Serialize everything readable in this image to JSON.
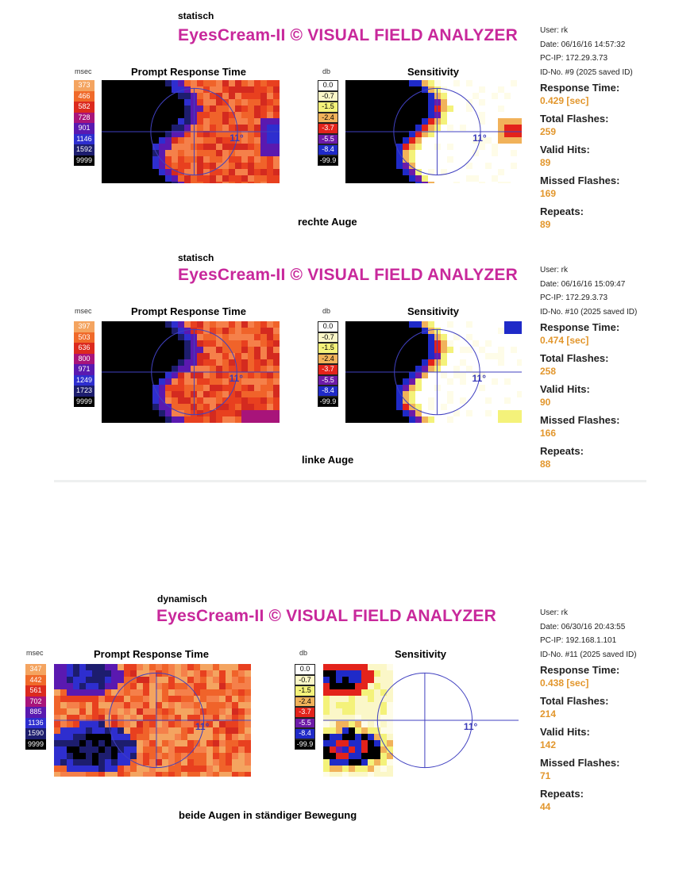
{
  "panels": [
    {
      "mode": "statisch",
      "title": "EyesCream-II © VISUAL FIELD ANALYZER",
      "prompt_unit": "msec",
      "prompt_title": "Prompt Response Time",
      "sens_unit": "db",
      "sens_title": "Sensitivity",
      "angle": "11°",
      "prompt_legend": [
        "373",
        "466",
        "582",
        "728",
        "901",
        "1146",
        "1592",
        "9999"
      ],
      "sens_legend": [
        "0.0",
        "-0.7",
        "-1.5",
        "-2.4",
        "-3.7",
        "-5.5",
        "-8.4",
        "-99.9"
      ],
      "caption": "rechte Auge",
      "info": {
        "user": "User: rk",
        "date": "Date: 06/16/16 14:57:32",
        "pcip": "PC-IP: 172.29.3.73",
        "idno": "ID-No. #9 (2025 saved ID)",
        "response_label": "Response Time:",
        "response_value": "0.429 [sec]",
        "total_label": "Total Flashes:",
        "total_value": "259",
        "valid_label": "Valid Hits:",
        "valid_value": "89",
        "missed_label": "Missed Flashes:",
        "missed_value": "169",
        "repeats_label": "Repeats:",
        "repeats_value": "89"
      }
    },
    {
      "mode": "statisch",
      "title": "EyesCream-II © VISUAL FIELD ANALYZER",
      "prompt_unit": "msec",
      "prompt_title": "Prompt Response Time",
      "sens_unit": "db",
      "sens_title": "Sensitivity",
      "angle": "11°",
      "prompt_legend": [
        "397",
        "503",
        "636",
        "800",
        "971",
        "1249",
        "1723",
        "9999"
      ],
      "sens_legend": [
        "0.0",
        "-0.7",
        "-1.5",
        "-2.4",
        "-3.7",
        "-5.5",
        "-8.4",
        "-99.9"
      ],
      "caption": "linke Auge",
      "info": {
        "user": "User: rk",
        "date": "Date: 06/16/16 15:09:47",
        "pcip": "PC-IP: 172.29.3.73",
        "idno": "ID-No. #10 (2025 saved ID)",
        "response_label": "Response Time:",
        "response_value": "0.474 [sec]",
        "total_label": "Total Flashes:",
        "total_value": "258",
        "valid_label": "Valid Hits:",
        "valid_value": "90",
        "missed_label": "Missed Flashes:",
        "missed_value": "166",
        "repeats_label": "Repeats:",
        "repeats_value": "88"
      }
    },
    {
      "mode": "dynamisch",
      "title": "EyesCream-II © VISUAL FIELD ANALYZER",
      "prompt_unit": "msec",
      "prompt_title": "Prompt Response Time",
      "sens_unit": "db",
      "sens_title": "Sensitivity",
      "angle": "11°",
      "prompt_legend": [
        "347",
        "442",
        "561",
        "702",
        "885",
        "1136",
        "1590",
        "9999"
      ],
      "sens_legend": [
        "0.0",
        "-0.7",
        "-1.5",
        "-2.4",
        "-3.7",
        "-5.5",
        "-8.4",
        "-99.9"
      ],
      "caption": "beide Augen in ständiger Bewegung",
      "info": {
        "user": "User: rk",
        "date": "Date: 06/30/16 20:43:55",
        "pcip": "PC-IP: 192.168.1.101",
        "idno": "ID-No. #11 (2025 saved ID)",
        "response_label": "Response Time:",
        "response_value": "0.438 [sec]",
        "total_label": "Total Flashes:",
        "total_value": "214",
        "valid_label": "Valid Hits:",
        "valid_value": "142",
        "missed_label": "Missed Flashes:",
        "missed_value": "71",
        "repeats_label": "Repeats:",
        "repeats_value": "44"
      }
    }
  ],
  "colors": {
    "title": "#c8289b",
    "value": "#e2962c",
    "prompt_legend_bg": [
      "#f4a460",
      "#f06a2a",
      "#dc2a1e",
      "#a8147a",
      "#5a19b0",
      "#2e2ecf",
      "#1d1d6e",
      "#000000"
    ],
    "prompt_legend_fg": [
      "#ffffff",
      "#ffffff",
      "#ffffff",
      "#ffffff",
      "#ffffff",
      "#ffffff",
      "#ffffff",
      "#ffffff"
    ],
    "sens_legend_bg": [
      "#ffffff",
      "#fbf7c8",
      "#f4f27a",
      "#f1b25a",
      "#e3231b",
      "#6d1aa8",
      "#1f2ac8",
      "#000000"
    ],
    "sens_legend_fg": [
      "#000000",
      "#000000",
      "#000000",
      "#000000",
      "#ffffff",
      "#ffffff",
      "#ffffff",
      "#ffffff"
    ]
  }
}
